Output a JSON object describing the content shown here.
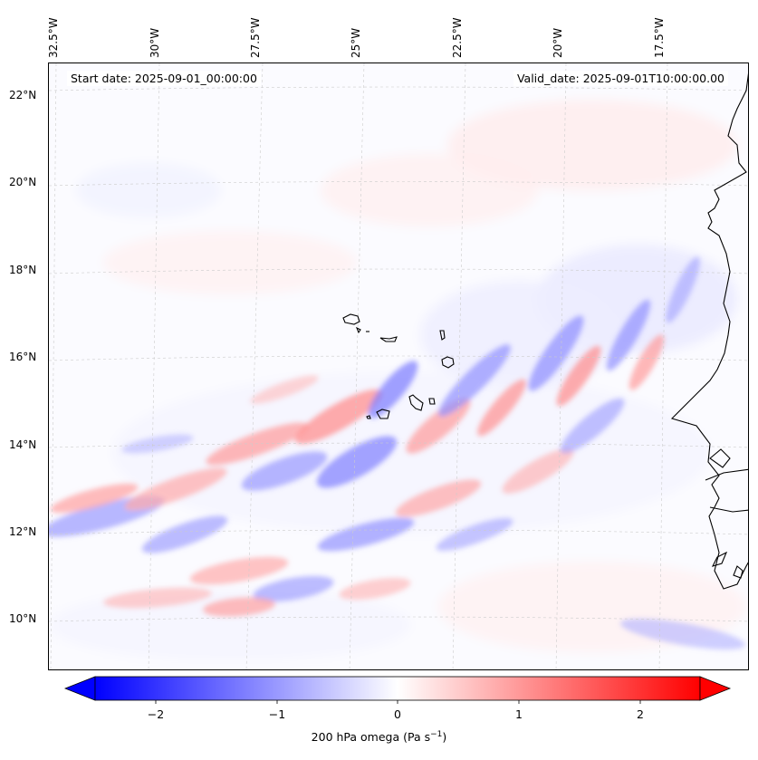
{
  "map": {
    "start_date": "Start date: 2025-09-01_00:00:00",
    "valid_date": "Valid_date: 2025-09-01T10:00:00.00",
    "longitude_labels": [
      "32.5°W",
      "30°W",
      "27.5°W",
      "25°W",
      "22.5°W",
      "20°W",
      "17.5°W"
    ],
    "latitude_labels": [
      "22°N",
      "20°N",
      "18°N",
      "16°N",
      "14°N",
      "12°N",
      "10°N"
    ],
    "variable": "200 hPa omega",
    "units": "(Pa s",
    "units_exp": "−1",
    "units_close": ")",
    "colormap": "bwr",
    "colors": {
      "negative": "#0000ff",
      "zero": "#ffffff",
      "positive": "#ff0000",
      "coastline": "#000000",
      "gridline": "#cccccc"
    }
  },
  "colorbar": {
    "ticks": [
      "−2",
      "−1",
      "0",
      "1",
      "2"
    ],
    "tick_values": [
      -2,
      -1,
      0,
      1,
      2
    ],
    "range": [
      -2.5,
      2.5
    ]
  }
}
